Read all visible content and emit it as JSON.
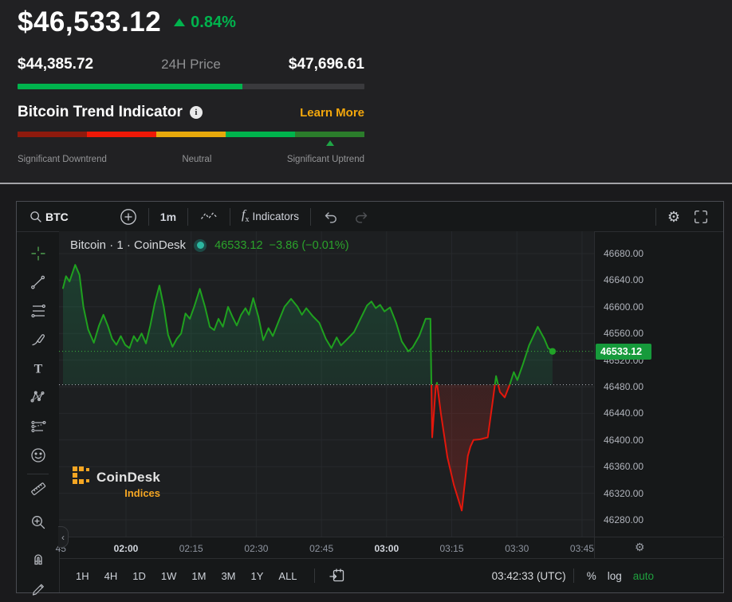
{
  "header": {
    "price": "$46,533.12",
    "change_pct": "0.84%",
    "range_low": "$44,385.72",
    "range_label": "24H Price",
    "range_high": "$47,696.61",
    "range_progress_pct": 64.9,
    "accent_green": "#00b34d"
  },
  "trend": {
    "title": "Bitcoin Trend Indicator",
    "info_glyph": "i",
    "learn_more": "Learn More",
    "learn_more_color": "#f3a70c",
    "segments": [
      "#8f1a0d",
      "#ef1807",
      "#e7a90c",
      "#00b34d",
      "#2b7d2b"
    ],
    "marker_pos_pct": 90,
    "label_down": "Significant Downtrend",
    "label_neutral": "Neutral",
    "label_up": "Significant Uptrend"
  },
  "toolbar": {
    "symbol": "BTC",
    "interval": "1m",
    "indicators_label": "Indicators",
    "fx": "f",
    "fx_sub": "x",
    "icons": [
      "search-icon",
      "compare-plus-icon",
      "chart-style-icon",
      "fx-icon",
      "undo-icon",
      "redo-icon",
      "settings-gear-icon",
      "fullscreen-icon"
    ]
  },
  "left_tools": [
    "crosshair",
    "trend-line",
    "fib-retracement",
    "brush",
    "text",
    "xabcd-pattern",
    "forecast",
    "emoji",
    "ruler",
    "zoom-in",
    "magnet",
    "pencil"
  ],
  "legend": {
    "title": "Bitcoin · 1 · CoinDesk",
    "price": "46533.12",
    "change": "−3.86",
    "change_pct": "(−0.01%)"
  },
  "watermark": {
    "name": "CoinDesk",
    "sub": "Indices",
    "gold": "#f5a623"
  },
  "price_tag": "46533.12",
  "bottom_bar": {
    "timeframes": [
      "1H",
      "4H",
      "1D",
      "1W",
      "1M",
      "3M",
      "1Y",
      "ALL"
    ],
    "clock": "03:42:33 (UTC)",
    "percent": "%",
    "log": "log",
    "auto": "auto"
  },
  "collapse_glyph": "‹",
  "gear_glyph": "⚙",
  "chart_data": {
    "type": "line",
    "style": "baseline",
    "title": "Bitcoin · 1 · CoinDesk",
    "last_price": 46533.12,
    "change": -3.86,
    "change_pct": -0.01,
    "baseline_value": 46483,
    "line_green": "#1fa11f",
    "line_red": "#e3170c",
    "ylim": [
      46260,
      46700
    ],
    "y_ticks": [
      46680,
      46640,
      46600,
      46560,
      46520,
      46480,
      46440,
      46400,
      46360,
      46320,
      46280
    ],
    "x_unit": "minutes after 01:45",
    "x_ticks": [
      {
        "label": "45",
        "t": 0,
        "hour": false
      },
      {
        "label": "02:00",
        "t": 15,
        "hour": true
      },
      {
        "label": "02:15",
        "t": 30,
        "hour": false
      },
      {
        "label": "02:30",
        "t": 45,
        "hour": false
      },
      {
        "label": "02:45",
        "t": 60,
        "hour": false
      },
      {
        "label": "03:00",
        "t": 75,
        "hour": true
      },
      {
        "label": "03:15",
        "t": 90,
        "hour": false
      },
      {
        "label": "03:30",
        "t": 105,
        "hour": false
      },
      {
        "label": "03:45",
        "t": 120,
        "hour": false
      }
    ],
    "points": [
      [
        0.5,
        46628
      ],
      [
        1.2,
        46646
      ],
      [
        2,
        46638
      ],
      [
        3.3,
        46663
      ],
      [
        4.3,
        46648
      ],
      [
        5.2,
        46600
      ],
      [
        6.3,
        46566
      ],
      [
        7.6,
        46546
      ],
      [
        8.8,
        46572
      ],
      [
        9.8,
        46588
      ],
      [
        10.8,
        46572
      ],
      [
        11.8,
        46552
      ],
      [
        12.8,
        46543
      ],
      [
        13.8,
        46556
      ],
      [
        14.8,
        46543
      ],
      [
        15.8,
        46538
      ],
      [
        16.8,
        46556
      ],
      [
        17.6,
        46548
      ],
      [
        18.6,
        46560
      ],
      [
        19.6,
        46545
      ],
      [
        20.6,
        46572
      ],
      [
        21.6,
        46605
      ],
      [
        22.7,
        46632
      ],
      [
        23.7,
        46600
      ],
      [
        24.7,
        46558
      ],
      [
        25.7,
        46540
      ],
      [
        26.7,
        46552
      ],
      [
        27.7,
        46560
      ],
      [
        28.7,
        46590
      ],
      [
        29.7,
        46582
      ],
      [
        30.7,
        46600
      ],
      [
        32,
        46627
      ],
      [
        33.2,
        46600
      ],
      [
        34.3,
        46570
      ],
      [
        35.3,
        46565
      ],
      [
        36.3,
        46582
      ],
      [
        37.3,
        46570
      ],
      [
        38.5,
        46600
      ],
      [
        39.5,
        46585
      ],
      [
        40.5,
        46572
      ],
      [
        41.5,
        46588
      ],
      [
        42.5,
        46598
      ],
      [
        43.3,
        46588
      ],
      [
        44.3,
        46613
      ],
      [
        45.5,
        46585
      ],
      [
        46.6,
        46550
      ],
      [
        47.8,
        46568
      ],
      [
        48.8,
        46556
      ],
      [
        50,
        46576
      ],
      [
        51.5,
        46600
      ],
      [
        53,
        46612
      ],
      [
        54.5,
        46600
      ],
      [
        55.5,
        46588
      ],
      [
        56.5,
        46598
      ],
      [
        58,
        46586
      ],
      [
        59.5,
        46576
      ],
      [
        61,
        46552
      ],
      [
        62.3,
        46538
      ],
      [
        63.5,
        46554
      ],
      [
        64.5,
        46542
      ],
      [
        66,
        46552
      ],
      [
        67.5,
        46562
      ],
      [
        69,
        46582
      ],
      [
        70.5,
        46602
      ],
      [
        71.5,
        46608
      ],
      [
        72.5,
        46598
      ],
      [
        73.5,
        46603
      ],
      [
        74.5,
        46593
      ],
      [
        75.8,
        46599
      ],
      [
        77.2,
        46576
      ],
      [
        78.5,
        46548
      ],
      [
        80,
        46533
      ],
      [
        81,
        46539
      ],
      [
        82.5,
        46556
      ],
      [
        84,
        46582
      ],
      [
        85.1,
        46582
      ],
      [
        85.5,
        46404
      ],
      [
        86.3,
        46478
      ],
      [
        86.6,
        46486
      ],
      [
        87.5,
        46440
      ],
      [
        89,
        46374
      ],
      [
        90.5,
        46332
      ],
      [
        92.3,
        46294
      ],
      [
        93.7,
        46376
      ],
      [
        94.3,
        46390
      ],
      [
        95,
        46400
      ],
      [
        96.5,
        46401
      ],
      [
        98.3,
        46404
      ],
      [
        99.3,
        46452
      ],
      [
        100.2,
        46496
      ],
      [
        101.1,
        46472
      ],
      [
        102.2,
        46464
      ],
      [
        103.4,
        46484
      ],
      [
        104.3,
        46502
      ],
      [
        105.1,
        46490
      ],
      [
        106.4,
        46514
      ],
      [
        107.8,
        46542
      ],
      [
        109.8,
        46570
      ],
      [
        111.3,
        46552
      ],
      [
        112.2,
        46538
      ],
      [
        113.2,
        46533.12
      ]
    ]
  }
}
